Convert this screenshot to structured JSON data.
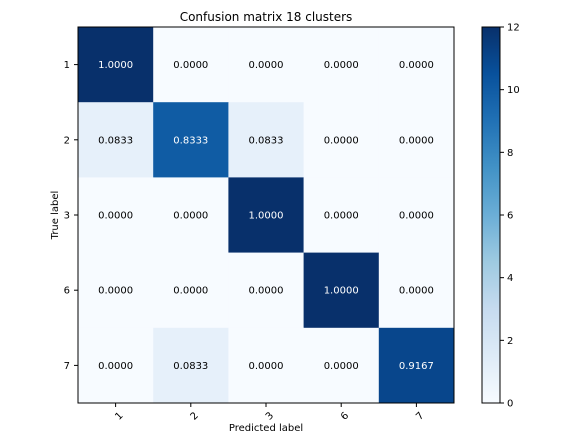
{
  "chart_data": {
    "type": "heatmap",
    "title": "Confusion matrix 18 clusters",
    "xlabel": "Predicted label",
    "ylabel": "True label",
    "x_categories": [
      "1",
      "2",
      "3",
      "6",
      "7"
    ],
    "y_categories": [
      "1",
      "2",
      "3",
      "6",
      "7"
    ],
    "values": [
      [
        "1.0000",
        "0.0000",
        "0.0000",
        "0.0000",
        "0.0000"
      ],
      [
        "0.0833",
        "0.8333",
        "0.0833",
        "0.0000",
        "0.0000"
      ],
      [
        "0.0000",
        "0.0000",
        "1.0000",
        "0.0000",
        "0.0000"
      ],
      [
        "0.0000",
        "0.0000",
        "0.0000",
        "1.0000",
        "0.0000"
      ],
      [
        "0.0000",
        "0.0833",
        "0.0000",
        "0.0000",
        "0.9167"
      ]
    ],
    "counts": [
      [
        12,
        0,
        0,
        0,
        0
      ],
      [
        1,
        10,
        1,
        0,
        0
      ],
      [
        0,
        0,
        12,
        0,
        0
      ],
      [
        0,
        0,
        0,
        12,
        0
      ],
      [
        0,
        1,
        0,
        0,
        11
      ]
    ],
    "colormap": "Blues",
    "colorbar": {
      "min": 0,
      "max": 12,
      "ticks": [
        "0",
        "2",
        "4",
        "6",
        "8",
        "10",
        "12"
      ]
    },
    "grid": false,
    "x_tick_rotation_deg": 45
  }
}
